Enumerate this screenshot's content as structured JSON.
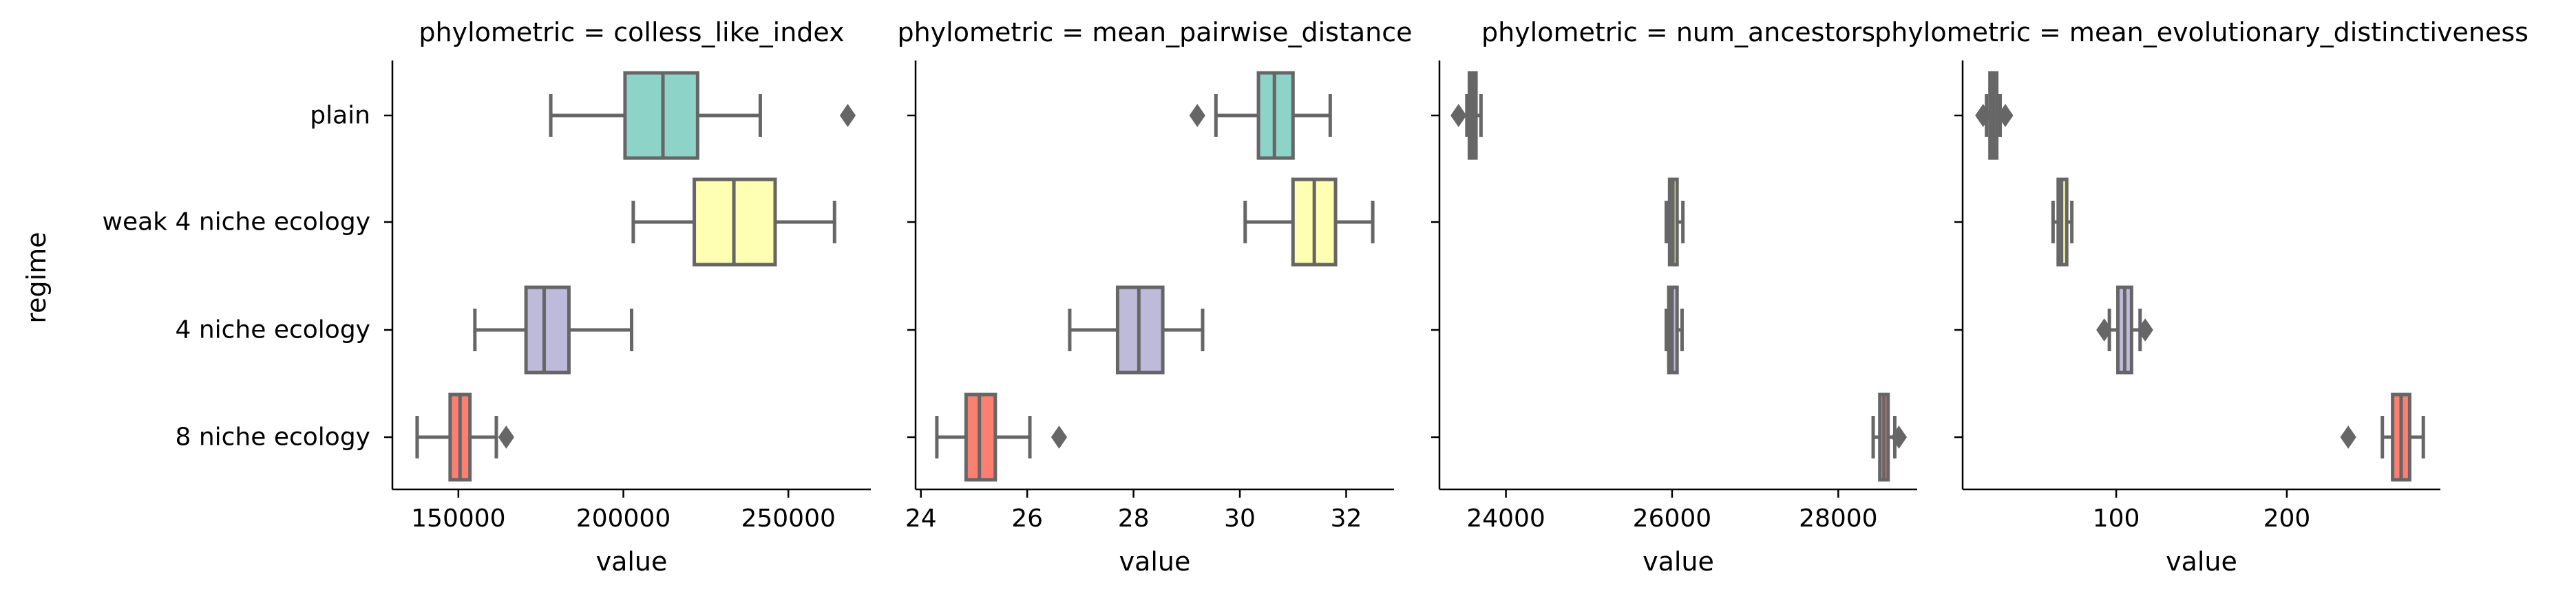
{
  "chart_data": {
    "type": "box",
    "y_axis_label": "regime",
    "x_axis_label": "value",
    "categories": [
      "plain",
      "weak 4 niche ecology",
      "4 niche ecology",
      "8 niche ecology"
    ],
    "colors": [
      "#8dd3c7",
      "#ffffb3",
      "#bebada",
      "#fb8072"
    ],
    "median_line_color": "#666666",
    "panels": [
      {
        "title": "phylometric = colless_like_index",
        "xlim": [
          130000,
          275000
        ],
        "xticks": [
          150000,
          200000,
          250000
        ],
        "xtick_labels": [
          "150000",
          "200000",
          "250000"
        ],
        "boxes": [
          {
            "category": "plain",
            "whislo": 178000,
            "q1": 200500,
            "med": 212000,
            "q3": 222500,
            "whishi": 241500,
            "fliers": [
              268000
            ]
          },
          {
            "category": "weak 4 niche ecology",
            "whislo": 203000,
            "q1": 221500,
            "med": 233500,
            "q3": 246000,
            "whishi": 264000,
            "fliers": []
          },
          {
            "category": "4 niche ecology",
            "whislo": 155000,
            "q1": 170500,
            "med": 176000,
            "q3": 183500,
            "whishi": 202500,
            "fliers": []
          },
          {
            "category": "8 niche ecology",
            "whislo": 137500,
            "q1": 147500,
            "med": 150500,
            "q3": 153500,
            "whishi": 161500,
            "fliers": [
              164500
            ]
          }
        ]
      },
      {
        "title": "phylometric = mean_pairwise_distance",
        "xlim": [
          23.9,
          32.9
        ],
        "xticks": [
          24,
          26,
          28,
          30,
          32
        ],
        "xtick_labels": [
          "24",
          "26",
          "28",
          "30",
          "32"
        ],
        "boxes": [
          {
            "category": "plain",
            "whislo": 29.55,
            "q1": 30.35,
            "med": 30.65,
            "q3": 31.0,
            "whishi": 31.7,
            "fliers": [
              29.2
            ]
          },
          {
            "category": "weak 4 niche ecology",
            "whislo": 30.1,
            "q1": 31.0,
            "med": 31.4,
            "q3": 31.8,
            "whishi": 32.5,
            "fliers": []
          },
          {
            "category": "4 niche ecology",
            "whislo": 26.8,
            "q1": 27.7,
            "med": 28.1,
            "q3": 28.55,
            "whishi": 29.3,
            "fliers": []
          },
          {
            "category": "8 niche ecology",
            "whislo": 24.3,
            "q1": 24.85,
            "med": 25.1,
            "q3": 25.4,
            "whishi": 26.05,
            "fliers": [
              26.6
            ]
          }
        ]
      },
      {
        "title": "phylometric = num_ancestors",
        "xlim": [
          23200,
          28950
        ],
        "xticks": [
          24000,
          26000,
          28000
        ],
        "xtick_labels": [
          "24000",
          "26000",
          "28000"
        ],
        "boxes": [
          {
            "category": "plain",
            "whislo": 23530,
            "q1": 23560,
            "med": 23600,
            "q3": 23640,
            "whishi": 23700,
            "fliers": [
              23430
            ]
          },
          {
            "category": "weak 4 niche ecology",
            "whislo": 25930,
            "q1": 25970,
            "med": 26010,
            "q3": 26060,
            "whishi": 26130,
            "fliers": []
          },
          {
            "category": "4 niche ecology",
            "whislo": 25930,
            "q1": 25960,
            "med": 26000,
            "q3": 26060,
            "whishi": 26120,
            "fliers": []
          },
          {
            "category": "8 niche ecology",
            "whislo": 28420,
            "q1": 28500,
            "med": 28550,
            "q3": 28600,
            "whishi": 28680,
            "fliers": [
              28730
            ]
          }
        ]
      },
      {
        "title": "phylometric = mean_evolutionary_distinctiveness",
        "xlim": [
          10,
          290
        ],
        "xticks": [
          100,
          200
        ],
        "xtick_labels": [
          "100",
          "200"
        ],
        "boxes": [
          {
            "category": "plain",
            "whislo": 24,
            "q1": 26,
            "med": 28,
            "q3": 30,
            "whishi": 32,
            "fliers": [
              22,
              35
            ]
          },
          {
            "category": "weak 4 niche ecology",
            "whislo": 63,
            "q1": 66,
            "med": 68,
            "q3": 71,
            "whishi": 74,
            "fliers": []
          },
          {
            "category": "4 niche ecology",
            "whislo": 96,
            "q1": 101,
            "med": 105,
            "q3": 109,
            "whishi": 114,
            "fliers": [
              93,
              117
            ]
          },
          {
            "category": "8 niche ecology",
            "whislo": 256,
            "q1": 262,
            "med": 267,
            "q3": 272,
            "whishi": 280,
            "fliers": [
              236
            ]
          }
        ]
      }
    ]
  }
}
